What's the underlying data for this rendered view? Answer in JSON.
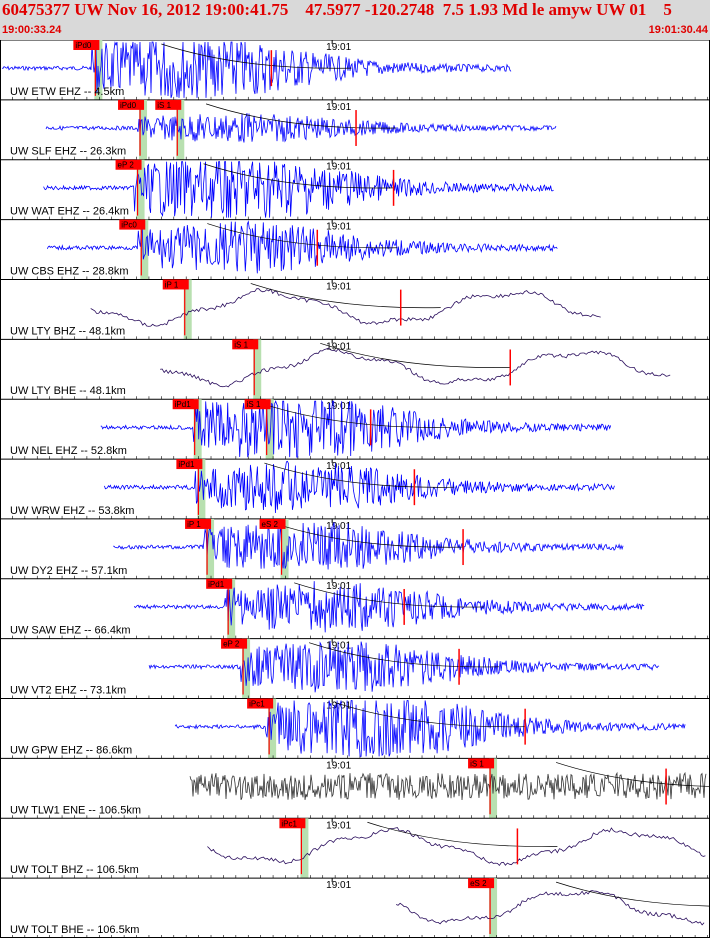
{
  "header": {
    "title": "60475377 UW Nov 16, 2012 19:00:41.75    47.5977 -120.2748  7.5 1.93 Md le amyw UW 01    5",
    "start_time": "19:00:33.24",
    "end_time": "19:01:30.44"
  },
  "colors": {
    "header_bg": "#d9d9d9",
    "header_text": "#e00000",
    "pick_box": "#ff0000",
    "pick_window": "#b8e0b0",
    "trace_blue": "#0000ff",
    "trace_purple": "#2b0f5e",
    "trace_gray": "#333333",
    "coda": "#ff0000"
  },
  "chart_data": {
    "type": "seismogram",
    "time_range": [
      "19:00:33.24",
      "19:01:30.44"
    ],
    "minute_tick_label": "19:01",
    "traces": [
      {
        "label": "UW ETW EHZ -- 4.5km",
        "picks": [
          {
            "label": "iPd0",
            "time": "19:00:40.6"
          }
        ],
        "color": "blue",
        "amp": "large"
      },
      {
        "label": "UW SLF EHZ -- 26.3km",
        "picks": [
          {
            "label": "iPd0",
            "time": "19:00:44.2"
          },
          {
            "label": "iS 1",
            "time": "19:00:47.2"
          }
        ],
        "color": "blue",
        "amp": "small"
      },
      {
        "label": "UW WAT EHZ -- 26.4km",
        "picks": [
          {
            "label": "eP 2",
            "time": "19:00:44.0"
          }
        ],
        "color": "blue",
        "amp": "large"
      },
      {
        "label": "UW CBS EHZ -- 28.8km",
        "picks": [
          {
            "label": "iPc0",
            "time": "19:00:44.3"
          }
        ],
        "color": "blue",
        "amp": "medium"
      },
      {
        "label": "UW LTY BHZ -- 48.1km",
        "picks": [
          {
            "label": "iP 1",
            "time": "19:00:47.8"
          }
        ],
        "color": "purple",
        "amp": "long"
      },
      {
        "label": "UW LTY BHE -- 48.1km",
        "picks": [
          {
            "label": "iS 1",
            "time": "19:00:53.4"
          }
        ],
        "color": "purple",
        "amp": "long"
      },
      {
        "label": "UW NEL EHZ -- 52.8km",
        "picks": [
          {
            "label": "iPd1",
            "time": "19:00:48.6"
          },
          {
            "label": "iS 1",
            "time": "19:00:54.4"
          }
        ],
        "color": "blue",
        "amp": "large"
      },
      {
        "label": "UW WRW EHZ -- 53.8km",
        "picks": [
          {
            "label": "iPd1",
            "time": "19:00:48.9"
          }
        ],
        "color": "blue",
        "amp": "medium"
      },
      {
        "label": "UW DY2 EHZ -- 57.1km",
        "picks": [
          {
            "label": "iP 1",
            "time": "19:00:49.6"
          },
          {
            "label": "eS 2",
            "time": "19:00:55.6"
          }
        ],
        "color": "blue",
        "amp": "medium"
      },
      {
        "label": "UW SAW EHZ -- 66.4km",
        "picks": [
          {
            "label": "iPd1",
            "time": "19:00:51.3"
          }
        ],
        "color": "blue",
        "amp": "medium"
      },
      {
        "label": "UW VT2 EHZ -- 73.1km",
        "picks": [
          {
            "label": "eP 2",
            "time": "19:00:52.5"
          }
        ],
        "color": "blue",
        "amp": "medium"
      },
      {
        "label": "UW GPW EHZ -- 86.6km",
        "picks": [
          {
            "label": "iPc1",
            "time": "19:00:54.6"
          }
        ],
        "color": "blue",
        "amp": "large"
      },
      {
        "label": "UW TLW1 ENE -- 106.5km",
        "picks": [
          {
            "label": "iS 1",
            "time": "19:01:12.4"
          }
        ],
        "color": "gray",
        "amp": "noise"
      },
      {
        "label": "UW TOLT BHZ -- 106.5km",
        "picks": [
          {
            "label": "iPc1",
            "time": "19:00:57.2"
          }
        ],
        "color": "purple",
        "amp": "long"
      },
      {
        "label": "UW TOLT BHE -- 106.5km",
        "picks": [
          {
            "label": "eS 2",
            "time": "19:01:12.4"
          }
        ],
        "color": "purple",
        "amp": "long"
      }
    ]
  }
}
